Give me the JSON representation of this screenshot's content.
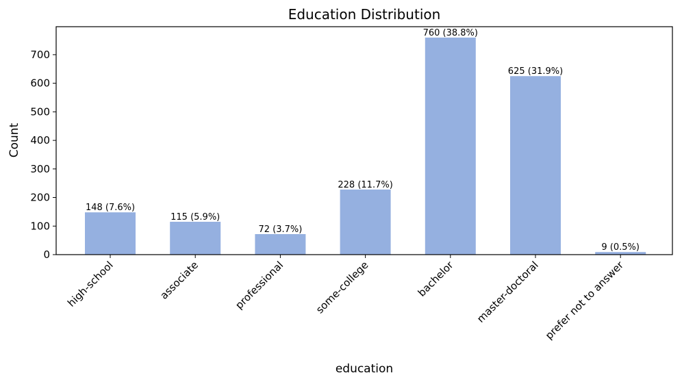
{
  "chart_data": {
    "type": "bar",
    "title": "Education Distribution",
    "xlabel": "education",
    "ylabel": "Count",
    "categories": [
      "high-school",
      "associate",
      "professional",
      "some-college",
      "bachelor",
      "master-doctoral",
      "prefer not to answer"
    ],
    "values": [
      148,
      115,
      72,
      228,
      760,
      625,
      9
    ],
    "data_labels": [
      "148 (7.6%)",
      "115 (5.9%)",
      "72 (3.7%)",
      "228 (11.7%)",
      "760 (38.8%)",
      "625 (31.9%)",
      "9 (0.5%)"
    ],
    "ylim": [
      0,
      798
    ],
    "yticks": [
      0,
      100,
      200,
      300,
      400,
      500,
      600,
      700
    ],
    "grid": false,
    "bar_color": "#95b0e0"
  }
}
